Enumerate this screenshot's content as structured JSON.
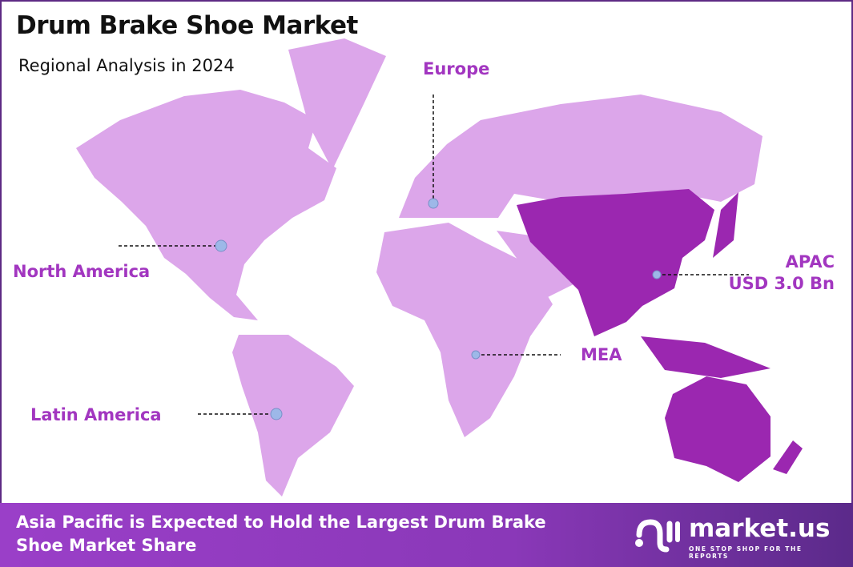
{
  "header": {
    "title": "Drum Brake Shoe Market",
    "subtitle": "Regional Analysis in 2024"
  },
  "colors": {
    "highlight_region": "#9b27b0",
    "other_regions": "#dca6ea",
    "label": "#a236c0",
    "border": "#5e2a84"
  },
  "regions": [
    {
      "name": "Europe"
    },
    {
      "name": "North America"
    },
    {
      "name": "APAC",
      "value": "USD 3.0 Bn"
    },
    {
      "name": "MEA"
    },
    {
      "name": "Latin America"
    }
  ],
  "footer": {
    "text": "Asia Pacific is Expected to Hold the Largest Drum Brake Shoe Market Share"
  },
  "logo": {
    "name": "market.us",
    "tagline": "ONE STOP SHOP FOR THE REPORTS"
  }
}
